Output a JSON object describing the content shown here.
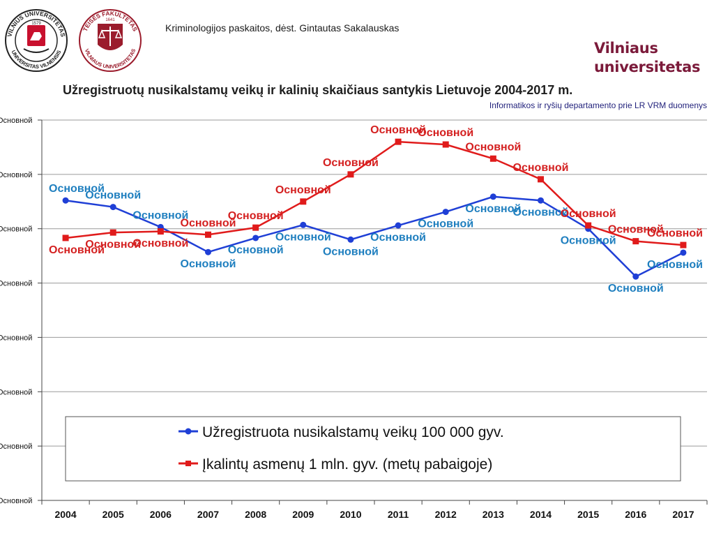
{
  "header": {
    "course_text": "Kriminologijos paskaitos, dėst. Gintautas Sakalauskas",
    "brand_line1": "Vilniaus",
    "brand_line2": "universitetas"
  },
  "logos": {
    "vu_seal": {
      "top_text": "VILNIUS UNIVERSITETAS",
      "bottom_text": "UNIVERSITAS VILNENSIS",
      "year": "1579"
    },
    "law_seal": {
      "top_text": "TEISĖS FAKULTETAS",
      "bottom_text": "VILNIAUS UNIVERSITETAS",
      "year": "1641"
    }
  },
  "colors": {
    "series1": "#1f3fd6",
    "series2": "#e01b1b",
    "label1": "#1f7fbf",
    "label2": "#d42020",
    "brand": "#7b1a3a"
  },
  "chart_data": {
    "type": "line",
    "title": "Užregistruotų nusikalstamų veikų ir kalinių skaičiaus santykis Lietuvoje 2004-2017 m.",
    "subtitle": "Informatikos ir ryšių departamento prie LR VRM  duomenys",
    "categories": [
      "2004",
      "2005",
      "2006",
      "2007",
      "2008",
      "2009",
      "2010",
      "2011",
      "2012",
      "2013",
      "2014",
      "2015",
      "2016",
      "2017"
    ],
    "y_tick_labels": [
      "Основной",
      "Основной",
      "Основной",
      "Основной",
      "Основной",
      "Основной",
      "Основной",
      "Основной"
    ],
    "ylim": [
      0,
      7
    ],
    "grid": "horizontal",
    "legend_placement": "bottom-center inside plot",
    "series": [
      {
        "name": "Užregistruota nusikalstamų veikų 100 000 gyv.",
        "values": [
          5.52,
          5.4,
          5.03,
          4.57,
          4.83,
          5.07,
          4.8,
          5.06,
          5.31,
          5.59,
          5.52,
          5.0,
          4.12,
          4.56
        ],
        "data_labels": [
          "Основной",
          "Основной",
          "Основной",
          "Основной",
          "Основной",
          "Основной",
          "Основной",
          "Основной",
          "Основной",
          "Основной",
          "Основной",
          "Основной",
          "Основной",
          "Основной"
        ]
      },
      {
        "name": "Įkalintų asmenų 1 mln. gyv. (metų pabaigoje)",
        "values": [
          4.83,
          4.93,
          4.95,
          4.89,
          5.02,
          5.5,
          6.0,
          6.6,
          6.55,
          6.29,
          5.91,
          5.06,
          4.77,
          4.7
        ],
        "data_labels": [
          "Основной",
          "Основной",
          "Основной",
          "Основной",
          "Основной",
          "Основной",
          "Основной",
          "Основной",
          "Основной",
          "Основной",
          "Основной",
          "Основной",
          "Основной",
          "Основной"
        ]
      }
    ]
  }
}
